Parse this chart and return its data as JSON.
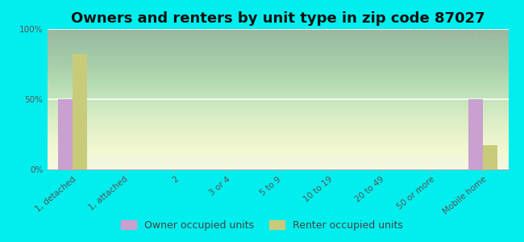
{
  "title": "Owners and renters by unit type in zip code 87027",
  "categories": [
    "1, detached",
    "1, attached",
    "2",
    "3 or 4",
    "5 to 9",
    "10 to 19",
    "20 to 49",
    "50 or more",
    "Mobile home"
  ],
  "owner_values": [
    50,
    0,
    0,
    0,
    0,
    0,
    0,
    0,
    50
  ],
  "renter_values": [
    82,
    0,
    0,
    0,
    0,
    0,
    0,
    0,
    17
  ],
  "owner_color": "#c9a0d0",
  "renter_color": "#c8cc7a",
  "background_color": "#00eeee",
  "ylim": [
    0,
    100
  ],
  "yticks": [
    0,
    50,
    100
  ],
  "ytick_labels": [
    "0%",
    "50%",
    "100%"
  ],
  "bar_width": 0.28,
  "legend_owner": "Owner occupied units",
  "legend_renter": "Renter occupied units",
  "watermark": "City-Data.com",
  "title_fontsize": 13,
  "tick_fontsize": 7.5,
  "legend_fontsize": 9
}
